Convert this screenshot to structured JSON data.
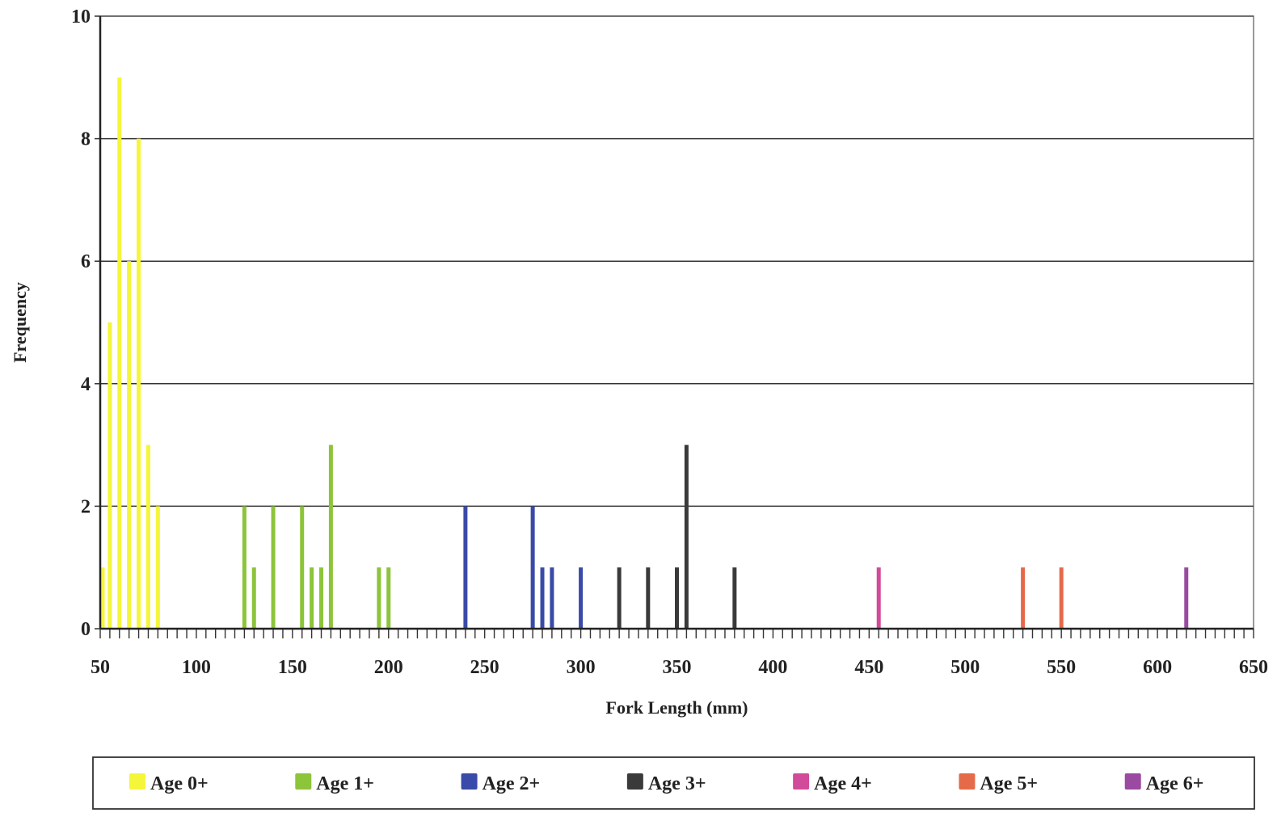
{
  "chart_data": {
    "type": "bar",
    "title": "",
    "xlabel": "Fork Length (mm)",
    "ylabel": "Frequency",
    "xlim": [
      50,
      650
    ],
    "ylim": [
      0,
      10
    ],
    "x_ticks": [
      50,
      100,
      150,
      200,
      250,
      300,
      350,
      400,
      450,
      500,
      550,
      600,
      650
    ],
    "y_ticks": [
      0,
      2,
      4,
      6,
      8,
      10
    ],
    "grid": true,
    "legend_position": "bottom",
    "bin_width": 5,
    "series": [
      {
        "name": "Age 0+",
        "color": "#f5f53a",
        "x": [
          50,
          55,
          60,
          65,
          70,
          75,
          80
        ],
        "values": [
          1,
          5,
          9,
          6,
          8,
          3,
          2
        ]
      },
      {
        "name": "Age 1+",
        "color": "#8cc43a",
        "x": [
          125,
          130,
          140,
          155,
          160,
          165,
          170,
          195,
          200
        ],
        "values": [
          2,
          1,
          2,
          2,
          1,
          1,
          3,
          1,
          1
        ]
      },
      {
        "name": "Age 2+",
        "color": "#3a4aa8",
        "x": [
          240,
          275,
          280,
          285,
          300
        ],
        "values": [
          2,
          2,
          1,
          1,
          1
        ]
      },
      {
        "name": "Age 3+",
        "color": "#3a3a3a",
        "x": [
          320,
          335,
          350,
          355,
          380
        ],
        "values": [
          1,
          1,
          1,
          3,
          1
        ]
      },
      {
        "name": "Age 4+",
        "color": "#d24a9a",
        "x": [
          455
        ],
        "values": [
          1
        ]
      },
      {
        "name": "Age 5+",
        "color": "#e56a4a",
        "x": [
          530,
          550
        ],
        "values": [
          1,
          1
        ]
      },
      {
        "name": "Age 6+",
        "color": "#9a4aa0",
        "x": [
          615
        ],
        "values": [
          1
        ]
      }
    ]
  }
}
